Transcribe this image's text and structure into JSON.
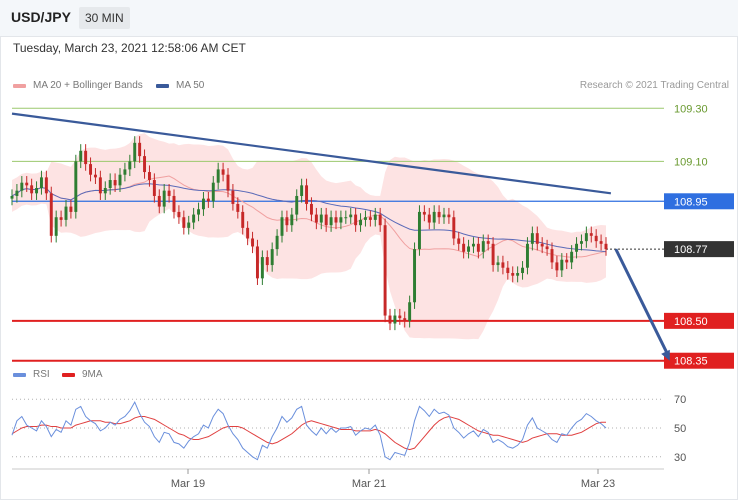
{
  "header": {
    "pair": "USD/JPY",
    "timeframe": "30 MIN",
    "datetime": "Tuesday, March 23, 2021 12:58:06 AM CET"
  },
  "legend": {
    "ma20": "MA 20 + Bollinger Bands",
    "ma50": "MA 50",
    "rsi": "RSI",
    "ma9": "9MA",
    "copyright": "Research © 2021 Trading Central"
  },
  "colors": {
    "bull": "#2e7d32",
    "bear": "#c62828",
    "bands_fill": "#fde3e3",
    "ma20": "#f0a0a0",
    "ma50": "#5a6ab8",
    "trendline": "#3a5a9a",
    "resistance_green": "#9cc86e",
    "pivot_blue": "#2f6fe0",
    "support_red": "#e02020",
    "rsi": "#6a8fdc",
    "rsi_ma": "#e04040"
  },
  "chart_data": [
    {
      "type": "candlestick",
      "title": "USD/JPY 30 MIN",
      "x_ticks": [
        "Mar 19",
        "Mar 21",
        "Mar 23"
      ],
      "ylim": [
        108.3,
        109.35
      ],
      "levels": [
        {
          "value": 109.3,
          "label": "109.30",
          "kind": "resistance"
        },
        {
          "value": 109.1,
          "label": "109.10",
          "kind": "resistance"
        },
        {
          "value": 108.95,
          "label": "108.95",
          "kind": "pivot"
        },
        {
          "value": 108.77,
          "label": "108.77",
          "kind": "last"
        },
        {
          "value": 108.5,
          "label": "108.50",
          "kind": "support"
        },
        {
          "value": 108.35,
          "label": "108.35",
          "kind": "support"
        }
      ],
      "candles_close": [
        108.97,
        108.99,
        109.02,
        109.01,
        108.98,
        109.0,
        109.04,
        108.98,
        108.82,
        108.89,
        108.88,
        108.93,
        108.91,
        109.1,
        109.14,
        109.09,
        109.05,
        109.04,
        108.98,
        109.0,
        109.03,
        109.01,
        109.05,
        109.07,
        109.1,
        109.17,
        109.12,
        109.06,
        109.03,
        108.97,
        108.93,
        108.99,
        108.97,
        108.91,
        108.89,
        108.85,
        108.87,
        108.9,
        108.92,
        108.96,
        108.95,
        109.02,
        109.07,
        109.05,
        108.99,
        108.94,
        108.91,
        108.85,
        108.81,
        108.78,
        108.66,
        108.74,
        108.71,
        108.77,
        108.82,
        108.89,
        108.86,
        108.9,
        108.97,
        109.01,
        108.94,
        108.9,
        108.87,
        108.9,
        108.86,
        108.89,
        108.87,
        108.89,
        108.89,
        108.9,
        108.86,
        108.88,
        108.89,
        108.88,
        108.9,
        108.86,
        108.52,
        108.49,
        108.52,
        108.51,
        108.5,
        108.57,
        108.77,
        108.91,
        108.9,
        108.87,
        108.91,
        108.89,
        108.9,
        108.89,
        108.81,
        108.79,
        108.76,
        108.78,
        108.79,
        108.76,
        108.8,
        108.79,
        108.71,
        108.72,
        108.7,
        108.68,
        108.67,
        108.68,
        108.7,
        108.79,
        108.83,
        108.79,
        108.78,
        108.77,
        108.72,
        108.69,
        108.73,
        108.72,
        108.76,
        108.79,
        108.8,
        108.83,
        108.82,
        108.8,
        108.79,
        108.77
      ],
      "trendline": [
        [
          0,
          109.28
        ],
        [
          122,
          108.98
        ]
      ],
      "forecast_arrow": [
        [
          123,
          108.77
        ],
        [
          134,
          108.35
        ]
      ]
    },
    {
      "type": "line",
      "title": "RSI",
      "ylim": [
        25,
        75
      ],
      "y_ticks": [
        70,
        50,
        30
      ],
      "series": [
        {
          "name": "RSI",
          "values": [
            45,
            55,
            58,
            52,
            50,
            48,
            55,
            51,
            44,
            49,
            47,
            55,
            52,
            63,
            65,
            58,
            55,
            53,
            48,
            50,
            54,
            52,
            56,
            58,
            62,
            68,
            60,
            54,
            51,
            44,
            40,
            47,
            46,
            40,
            39,
            36,
            41,
            44,
            46,
            52,
            50,
            58,
            63,
            60,
            52,
            46,
            42,
            36,
            33,
            30,
            28,
            38,
            36,
            44,
            50,
            58,
            54,
            57,
            63,
            65,
            52,
            48,
            45,
            50,
            46,
            50,
            47,
            50,
            50,
            51,
            45,
            48,
            50,
            49,
            52,
            45,
            30,
            28,
            33,
            32,
            31,
            40,
            55,
            65,
            62,
            58,
            63,
            60,
            61,
            59,
            50,
            47,
            43,
            46,
            48,
            44,
            49,
            47,
            40,
            42,
            40,
            37,
            36,
            38,
            42,
            52,
            57,
            50,
            48,
            46,
            42,
            40,
            46,
            45,
            50,
            54,
            56,
            60,
            58,
            55,
            53,
            50
          ]
        },
        {
          "name": "9MA",
          "values": [
            46,
            48,
            50,
            51,
            51,
            51,
            52,
            52,
            51,
            51,
            50,
            50,
            50,
            52,
            53,
            54,
            55,
            55,
            55,
            54,
            54,
            53,
            53,
            54,
            55,
            57,
            58,
            58,
            57,
            56,
            54,
            52,
            50,
            48,
            46,
            45,
            43,
            42,
            42,
            43,
            44,
            46,
            48,
            50,
            51,
            51,
            51,
            50,
            48,
            46,
            44,
            42,
            40,
            39,
            40,
            42,
            44,
            46,
            49,
            52,
            54,
            55,
            54,
            53,
            52,
            51,
            50,
            49,
            49,
            49,
            48,
            48,
            48,
            48,
            49,
            48,
            46,
            43,
            40,
            38,
            36,
            35,
            36,
            40,
            44,
            48,
            52,
            55,
            57,
            58,
            57,
            56,
            54,
            52,
            50,
            48,
            47,
            46,
            45,
            45,
            44,
            43,
            42,
            41,
            40,
            41,
            43,
            44,
            45,
            46,
            46,
            46,
            45,
            45,
            45,
            46,
            47,
            49,
            51,
            53,
            54,
            54
          ]
        }
      ]
    }
  ]
}
